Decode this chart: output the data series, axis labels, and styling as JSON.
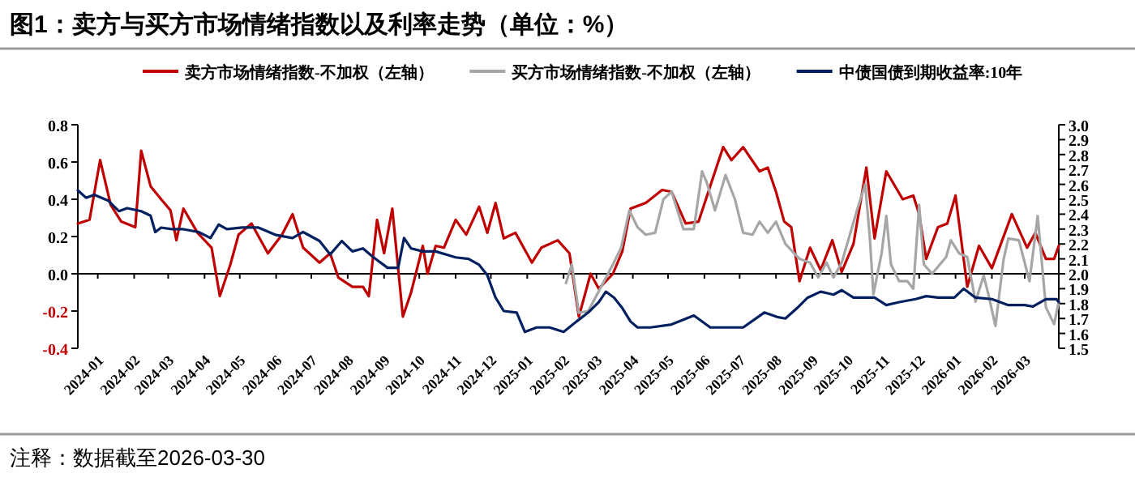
{
  "chart_data": {
    "type": "line",
    "title": "图1：卖方与买方市场情绪指数以及利率走势（单位：%）",
    "annotations": [
      "注释：数据截至2026-03-30"
    ],
    "legend": "top",
    "xlim": [
      "2023-12-15",
      "2026-03-30"
    ],
    "xticks": [
      {
        "value": "2024-01-01",
        "label": "2024-01"
      },
      {
        "value": "2024-02-01",
        "label": "2024-02"
      },
      {
        "value": "2024-03-01",
        "label": "2024-03"
      },
      {
        "value": "2024-04-01",
        "label": "2024-04"
      },
      {
        "value": "2024-05-01",
        "label": "2024-05"
      },
      {
        "value": "2024-06-01",
        "label": "2024-06"
      },
      {
        "value": "2024-07-01",
        "label": "2024-07"
      },
      {
        "value": "2024-08-01",
        "label": "2024-08"
      },
      {
        "value": "2024-09-01",
        "label": "2024-09"
      },
      {
        "value": "2024-10-01",
        "label": "2024-10"
      },
      {
        "value": "2024-11-01",
        "label": "2024-11"
      },
      {
        "value": "2024-12-01",
        "label": "2024-12"
      },
      {
        "value": "2025-01-01",
        "label": "2025-01"
      },
      {
        "value": "2025-02-01",
        "label": "2025-02"
      },
      {
        "value": "2025-03-01",
        "label": "2025-03"
      },
      {
        "value": "2025-04-01",
        "label": "2025-04"
      },
      {
        "value": "2025-05-01",
        "label": "2025-05"
      },
      {
        "value": "2025-06-01",
        "label": "2025-06"
      },
      {
        "value": "2025-07-01",
        "label": "2025-07"
      },
      {
        "value": "2025-08-01",
        "label": "2025-08"
      },
      {
        "value": "2025-09-01",
        "label": "2025-09"
      },
      {
        "value": "2025-10-01",
        "label": "2025-10"
      },
      {
        "value": "2025-11-01",
        "label": "2025-11"
      },
      {
        "value": "2025-12-01",
        "label": "2025-12"
      },
      {
        "value": "2026-01-01",
        "label": "2026-01"
      },
      {
        "value": "2026-02-01",
        "label": "2026-02"
      },
      {
        "value": "2026-03-01",
        "label": "2026-03"
      }
    ],
    "ylim": [
      -0.4,
      0.8
    ],
    "yticks": [
      -0.4,
      -0.2,
      {
        "value": 0,
        "label": "0.0"
      },
      0.2,
      0.4,
      0.6,
      0.8
    ],
    "y2lim": [
      1.5,
      3.0
    ],
    "y2ticks": [
      1.5,
      1.6,
      1.7,
      1.8,
      1.9,
      {
        "value": 2,
        "label": "2.0"
      },
      2.1,
      2.2,
      2.3,
      2.4,
      2.5,
      2.6,
      2.7,
      2.8,
      2.9,
      {
        "value": 3,
        "label": "3.0"
      }
    ],
    "series": [
      {
        "name": "卖方市场情绪指数-不加权（左轴）",
        "color": "#c00000",
        "x": [
          "2023-12-15",
          "2023-12-25",
          "2024-01-03",
          "2024-01-12",
          "2024-01-21",
          "2024-02-02",
          "2024-02-07",
          "2024-02-15",
          "2024-02-24",
          "2024-03-03",
          "2024-03-08",
          "2024-03-14",
          "2024-03-26",
          "2024-04-07",
          "2024-04-14",
          "2024-04-23",
          "2024-04-30",
          "2024-05-11",
          "2024-05-25",
          "2024-06-06",
          "2024-06-15",
          "2024-06-24",
          "2024-07-08",
          "2024-07-17",
          "2024-07-24",
          "2024-08-05",
          "2024-08-14",
          "2024-08-19",
          "2024-08-26",
          "2024-09-01",
          "2024-09-08",
          "2024-09-17",
          "2024-09-24",
          "2024-10-04",
          "2024-10-08",
          "2024-10-15",
          "2024-10-22",
          "2024-11-01",
          "2024-11-10",
          "2024-11-21",
          "2024-11-28",
          "2024-12-05",
          "2024-12-12",
          "2024-12-22",
          "2025-01-05",
          "2025-01-13",
          "2025-01-27",
          "2025-02-06",
          "2025-02-14",
          "2025-02-24",
          "2025-03-03",
          "2025-03-15",
          "2025-03-23",
          "2025-03-30",
          "2025-04-12",
          "2025-04-26",
          "2025-05-04",
          "2025-05-16",
          "2025-05-27",
          "2025-06-08",
          "2025-06-17",
          "2025-06-24",
          "2025-07-04",
          "2025-07-18",
          "2025-07-25",
          "2025-08-01",
          "2025-08-08",
          "2025-08-14",
          "2025-08-21",
          "2025-08-30",
          "2025-09-08",
          "2025-09-18",
          "2025-09-26",
          "2025-10-06",
          "2025-10-17",
          "2025-10-24",
          "2025-11-03",
          "2025-11-17",
          "2025-11-26",
          "2025-12-01",
          "2025-12-07",
          "2025-12-17",
          "2025-12-25",
          "2026-01-01",
          "2026-01-11",
          "2026-01-21",
          "2026-02-01",
          "2026-02-18",
          "2026-03-03",
          "2026-03-10",
          "2026-03-19",
          "2026-03-26",
          "2026-03-30"
        ],
        "values": [
          0.27,
          0.29,
          0.61,
          0.37,
          0.28,
          0.25,
          0.66,
          0.47,
          0.4,
          0.34,
          0.18,
          0.35,
          0.22,
          0.14,
          -0.12,
          0.05,
          0.21,
          0.27,
          0.11,
          0.21,
          0.32,
          0.14,
          0.06,
          0.11,
          -0.02,
          -0.07,
          -0.07,
          -0.12,
          0.29,
          0.11,
          0.35,
          -0.23,
          -0.1,
          0.15,
          0.0,
          0.15,
          0.14,
          0.29,
          0.21,
          0.36,
          0.22,
          0.38,
          0.19,
          0.22,
          0.06,
          0.14,
          0.18,
          0.11,
          -0.23,
          0.0,
          -0.08,
          0.0,
          0.12,
          0.35,
          0.38,
          0.45,
          0.44,
          0.27,
          0.28,
          0.51,
          0.68,
          0.61,
          0.68,
          0.55,
          0.57,
          0.44,
          0.28,
          0.25,
          -0.04,
          0.14,
          0.02,
          0.18,
          0.01,
          0.16,
          0.57,
          0.19,
          0.55,
          0.4,
          0.42,
          0.32,
          0.08,
          0.25,
          0.27,
          0.42,
          -0.07,
          0.15,
          0.03,
          0.32,
          0.14,
          0.22,
          0.08,
          0.08,
          0.15
        ]
      },
      {
        "name": "买方市场情绪指数-不加权（左轴）",
        "color": "#a6a6a6",
        "x": [
          "2025-02-03",
          "2025-02-08",
          "2025-02-14",
          "2025-02-22",
          "2025-03-05",
          "2025-03-15",
          "2025-03-22",
          "2025-03-29",
          "2025-04-05",
          "2025-04-12",
          "2025-04-20",
          "2025-04-27",
          "2025-05-04",
          "2025-05-14",
          "2025-05-23",
          "2025-05-30",
          "2025-06-03",
          "2025-06-10",
          "2025-06-19",
          "2025-06-27",
          "2025-07-04",
          "2025-07-12",
          "2025-07-18",
          "2025-07-25",
          "2025-08-01",
          "2025-08-09",
          "2025-08-21",
          "2025-08-30",
          "2025-09-06",
          "2025-09-13",
          "2025-09-19",
          "2025-09-26",
          "2025-10-09",
          "2025-10-16",
          "2025-10-20",
          "2025-10-23",
          "2025-10-30",
          "2025-11-03",
          "2025-11-07",
          "2025-11-14",
          "2025-11-21",
          "2025-11-26",
          "2025-12-01",
          "2025-12-05",
          "2025-12-12",
          "2025-12-24",
          "2025-12-28",
          "2026-01-04",
          "2026-01-11",
          "2026-01-18",
          "2026-01-25",
          "2026-01-29",
          "2026-02-04",
          "2026-02-11",
          "2026-02-15",
          "2026-02-24",
          "2026-03-05",
          "2026-03-12",
          "2026-03-19",
          "2026-03-26",
          "2026-03-30"
        ],
        "values": [
          -0.05,
          0.05,
          -0.21,
          -0.2,
          -0.07,
          0.05,
          0.14,
          0.34,
          0.25,
          0.21,
          0.22,
          0.4,
          0.44,
          0.24,
          0.24,
          0.55,
          0.49,
          0.34,
          0.53,
          0.4,
          0.22,
          0.21,
          0.28,
          0.22,
          0.28,
          0.16,
          0.08,
          0.06,
          -0.02,
          0.06,
          -0.02,
          0.06,
          0.34,
          0.48,
          0.19,
          -0.11,
          0.11,
          0.31,
          0.05,
          -0.04,
          -0.04,
          -0.08,
          0.37,
          0.05,
          0.0,
          0.09,
          0.18,
          0.11,
          0.09,
          -0.15,
          -0.01,
          -0.11,
          -0.28,
          0.08,
          0.19,
          0.18,
          -0.04,
          0.31,
          -0.18,
          -0.27,
          -0.15
        ]
      },
      {
        "name": "中债国债到期收益率:10年",
        "color": "#002060",
        "axis": "y2",
        "x": [
          "2023-12-15",
          "2023-12-22",
          "2023-12-29",
          "2024-01-10",
          "2024-01-19",
          "2024-01-26",
          "2024-02-07",
          "2024-02-15",
          "2024-02-19",
          "2024-02-24",
          "2024-03-04",
          "2024-03-13",
          "2024-03-27",
          "2024-04-06",
          "2024-04-13",
          "2024-04-20",
          "2024-05-03",
          "2024-05-17",
          "2024-06-01",
          "2024-06-15",
          "2024-06-24",
          "2024-07-08",
          "2024-07-17",
          "2024-07-27",
          "2024-08-05",
          "2024-08-14",
          "2024-08-23",
          "2024-09-04",
          "2024-09-13",
          "2024-09-18",
          "2024-09-24",
          "2024-10-04",
          "2024-10-15",
          "2024-11-01",
          "2024-11-12",
          "2024-11-21",
          "2024-11-28",
          "2024-12-05",
          "2024-12-12",
          "2024-12-23",
          "2024-12-30",
          "2025-01-09",
          "2025-01-20",
          "2025-02-01",
          "2025-02-12",
          "2025-02-22",
          "2025-03-03",
          "2025-03-09",
          "2025-03-16",
          "2025-03-23",
          "2025-03-30",
          "2025-04-05",
          "2025-04-16",
          "2025-05-04",
          "2025-05-23",
          "2025-06-06",
          "2025-07-04",
          "2025-07-22",
          "2025-08-02",
          "2025-08-09",
          "2025-08-19",
          "2025-08-28",
          "2025-09-08",
          "2025-09-19",
          "2025-09-26",
          "2025-10-06",
          "2025-10-17",
          "2025-10-24",
          "2025-11-03",
          "2025-11-14",
          "2025-11-28",
          "2025-12-07",
          "2025-12-17",
          "2025-12-31",
          "2026-01-08",
          "2026-01-18",
          "2026-02-01",
          "2026-02-15",
          "2026-03-01",
          "2026-03-08",
          "2026-03-19",
          "2026-03-28",
          "2026-03-30"
        ],
        "values": [
          2.56,
          2.51,
          2.53,
          2.49,
          2.42,
          2.44,
          2.42,
          2.39,
          2.28,
          2.31,
          2.3,
          2.3,
          2.28,
          2.24,
          2.33,
          2.3,
          2.31,
          2.31,
          2.26,
          2.24,
          2.28,
          2.22,
          2.13,
          2.22,
          2.15,
          2.17,
          2.11,
          2.04,
          2.04,
          2.24,
          2.17,
          2.15,
          2.15,
          2.11,
          2.1,
          2.06,
          1.99,
          1.84,
          1.75,
          1.74,
          1.61,
          1.64,
          1.64,
          1.61,
          1.68,
          1.74,
          1.81,
          1.88,
          1.84,
          1.77,
          1.68,
          1.64,
          1.64,
          1.66,
          1.72,
          1.64,
          1.64,
          1.74,
          1.71,
          1.7,
          1.77,
          1.84,
          1.88,
          1.86,
          1.89,
          1.84,
          1.84,
          1.84,
          1.79,
          1.81,
          1.83,
          1.85,
          1.84,
          1.84,
          1.9,
          1.84,
          1.83,
          1.79,
          1.79,
          1.78,
          1.83,
          1.83,
          1.81
        ]
      }
    ]
  }
}
